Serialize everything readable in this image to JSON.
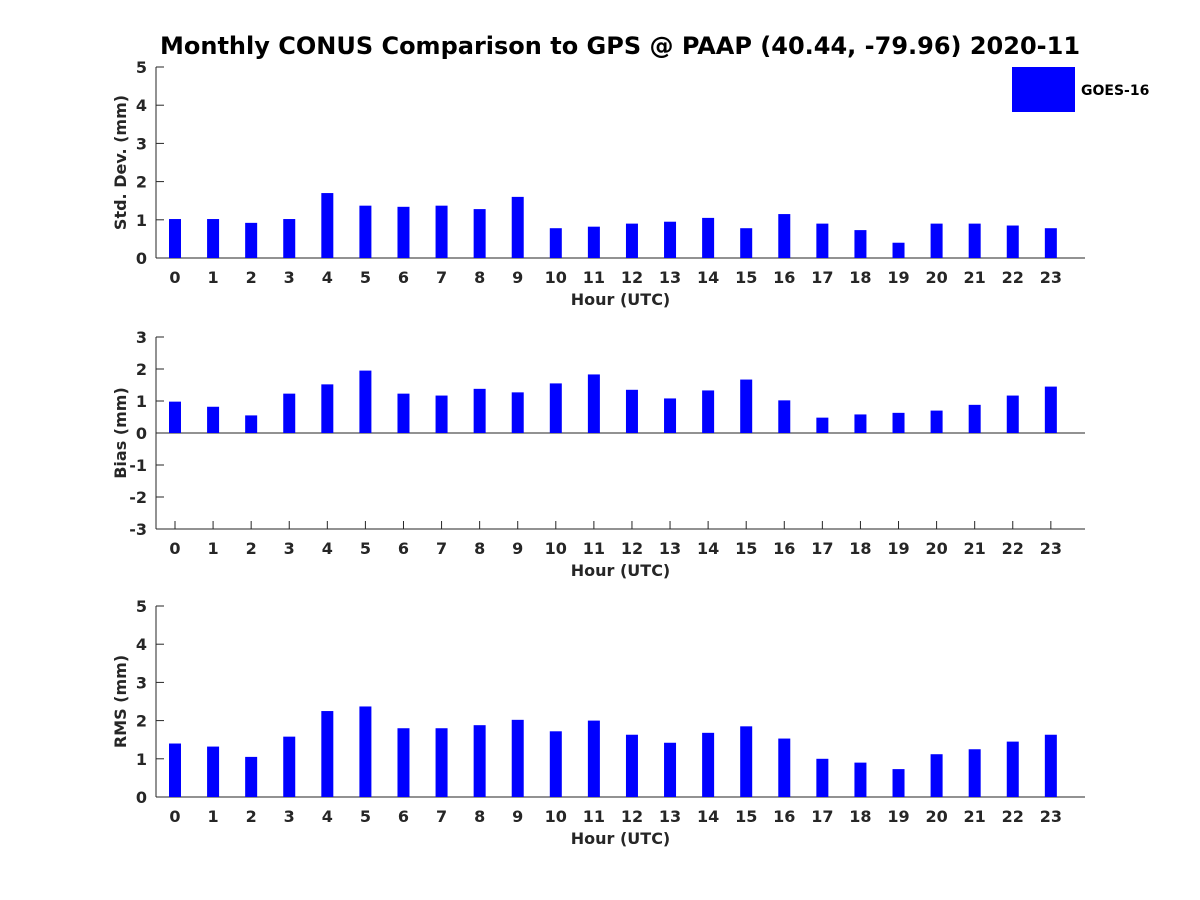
{
  "chart_data": {
    "type": "bar",
    "title": "Monthly CONUS Comparison to GPS @ PAAP (40.44, -79.96) 2020-11",
    "legend": {
      "label": "GOES-16",
      "color": "#0000ff",
      "placement": "top-right"
    },
    "categories": [
      "0",
      "1",
      "2",
      "3",
      "4",
      "5",
      "6",
      "7",
      "8",
      "9",
      "10",
      "11",
      "12",
      "13",
      "14",
      "15",
      "16",
      "17",
      "18",
      "19",
      "20",
      "21",
      "22",
      "23"
    ],
    "panels": [
      {
        "ylabel": "Std. Dev. (mm)",
        "xlabel": "Hour (UTC)",
        "ylim": [
          0,
          5
        ],
        "yticks": [
          "0",
          "1",
          "2",
          "3",
          "4",
          "5"
        ],
        "series": [
          {
            "name": "GOES-16",
            "values": [
              1.02,
              1.02,
              0.92,
              1.02,
              1.7,
              1.37,
              1.34,
              1.37,
              1.28,
              1.6,
              0.78,
              0.82,
              0.9,
              0.95,
              1.05,
              0.78,
              1.15,
              0.9,
              0.73,
              0.4,
              0.9,
              0.9,
              0.85,
              0.78
            ]
          }
        ]
      },
      {
        "ylabel": "Bias (mm)",
        "xlabel": "Hour (UTC)",
        "ylim": [
          -3,
          3
        ],
        "yticks": [
          "-3",
          "-2",
          "-1",
          "0",
          "1",
          "2",
          "3"
        ],
        "series": [
          {
            "name": "GOES-16",
            "values": [
              0.98,
              0.82,
              0.55,
              1.23,
              1.52,
              1.95,
              1.23,
              1.17,
              1.38,
              1.27,
              1.55,
              1.83,
              1.35,
              1.08,
              1.33,
              1.67,
              1.02,
              0.48,
              0.58,
              0.63,
              0.7,
              0.88,
              1.17,
              1.45
            ]
          }
        ]
      },
      {
        "ylabel": "RMS (mm)",
        "xlabel": "Hour (UTC)",
        "ylim": [
          0,
          5
        ],
        "yticks": [
          "0",
          "1",
          "2",
          "3",
          "4",
          "5"
        ],
        "series": [
          {
            "name": "GOES-16",
            "values": [
              1.4,
              1.32,
              1.05,
              1.58,
              2.25,
              2.37,
              1.8,
              1.8,
              1.88,
              2.02,
              1.72,
              2.0,
              1.63,
              1.42,
              1.68,
              1.85,
              1.53,
              1.0,
              0.9,
              0.73,
              1.12,
              1.25,
              1.45,
              1.63
            ]
          }
        ]
      }
    ]
  }
}
